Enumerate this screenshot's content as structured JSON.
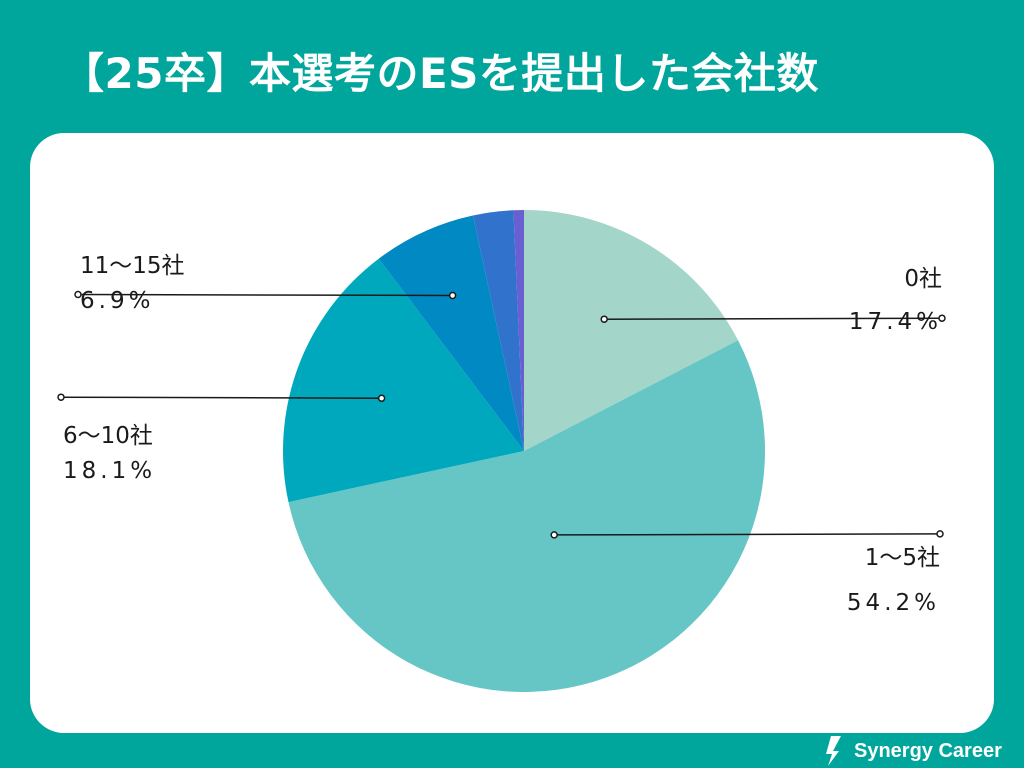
{
  "page": {
    "title": "【25卒】本選考のESを提出した会社数",
    "brand": "Synergy Career"
  },
  "colors": {
    "background": "#00a59c",
    "card": "#ffffff",
    "text": "#ffffff"
  },
  "chart_data": {
    "type": "pie",
    "title": "【25卒】本選考のESを提出した会社数",
    "start": "12 o'clock",
    "direction": "clockwise",
    "slices": [
      {
        "name": "0社",
        "value": 17.4,
        "label": "17.4%",
        "color": "#a3d5c8"
      },
      {
        "name": "1〜5社",
        "value": 54.2,
        "label": "54.2%",
        "color": "#66c6c5"
      },
      {
        "name": "6〜10社",
        "value": 18.1,
        "label": "18.1%",
        "color": "#00a8bd"
      },
      {
        "name": "11〜15社",
        "value": 6.9,
        "label": "6.9%",
        "color": "#0089c2"
      },
      {
        "name": "",
        "value": 2.7,
        "label": "",
        "color": "#3173cc"
      },
      {
        "name": "",
        "value": 0.7,
        "label": "",
        "color": "#6a5fd0"
      }
    ]
  }
}
